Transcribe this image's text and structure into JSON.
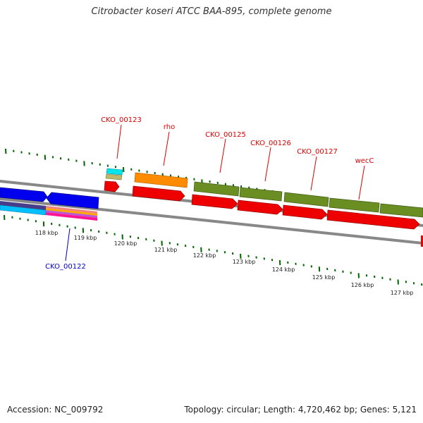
{
  "title": "Citrobacter koseri ATCC BAA-895, complete genome",
  "footer": {
    "accession": "Accession: NC_009792",
    "summary": "Topology: circular; Length: 4,720,462 bp; Genes: 5,121"
  },
  "colors": {
    "forward_cds": "#ee0000",
    "gene_olive": "#6b8e23",
    "gene_orange": "#ff8c00",
    "gene_blue": "#0000ee",
    "gene_cyan": "#00e5ee",
    "backbone": "#888888",
    "tick": "#006400",
    "label_red": "#dd0000",
    "label_blue": "#0000cc"
  },
  "scale_labels": [
    "118 kbp",
    "119 kbp",
    "120 kbp",
    "121 kbp",
    "122 kbp",
    "123 kbp",
    "124 kbp",
    "125 kbp",
    "126 kbp",
    "127 kbp"
  ],
  "gene_labels": [
    {
      "name": "CKO_00123",
      "color": "red"
    },
    {
      "name": "rho",
      "color": "red"
    },
    {
      "name": "CKO_00125",
      "color": "red"
    },
    {
      "name": "CKO_00126",
      "color": "red"
    },
    {
      "name": "CKO_00127",
      "color": "red"
    },
    {
      "name": "wecC",
      "color": "red"
    },
    {
      "name": "CKO_00122",
      "color": "blue"
    }
  ]
}
